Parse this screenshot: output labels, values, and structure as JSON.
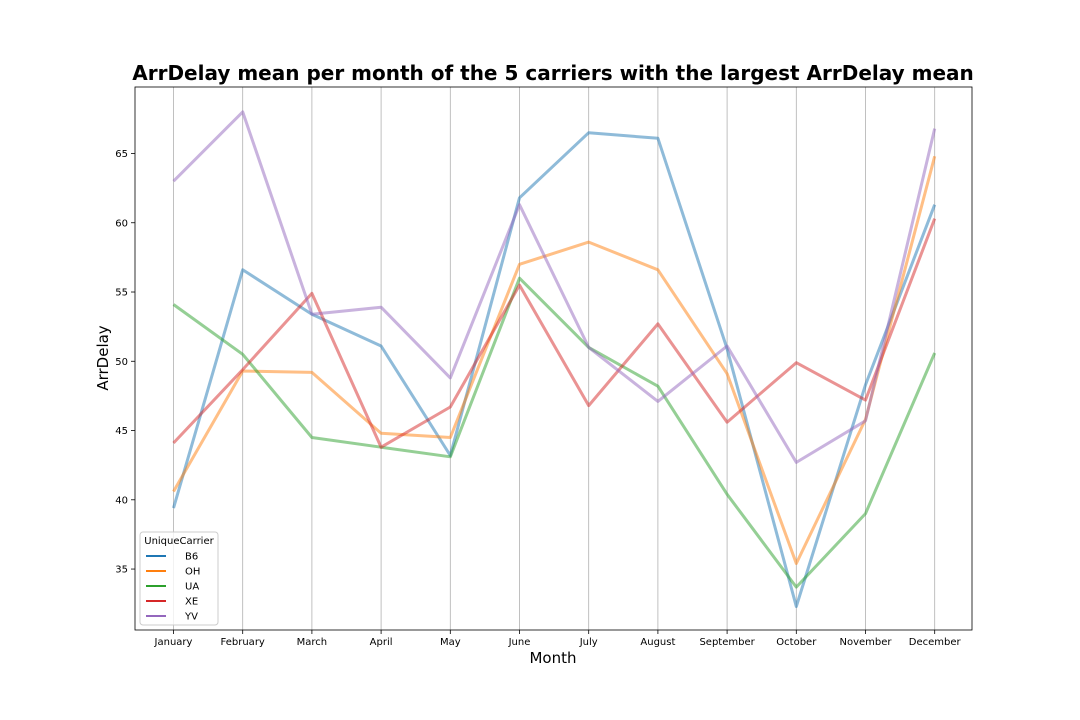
{
  "chart_data": {
    "type": "line",
    "title": "ArrDelay mean per month of the 5 carriers with the largest ArrDelay mean",
    "xlabel": "Month",
    "ylabel": "ArrDelay",
    "categories": [
      "January",
      "February",
      "March",
      "April",
      "May",
      "June",
      "July",
      "August",
      "September",
      "October",
      "November",
      "December"
    ],
    "yticks": [
      35,
      40,
      45,
      50,
      55,
      60,
      65
    ],
    "ylim": [
      30.6,
      69.8
    ],
    "grid": "vertical",
    "legend": {
      "title": "UniqueCarrier",
      "placement": "lower-left"
    },
    "series": [
      {
        "name": "B6",
        "color": "#1f77b4",
        "values": [
          39.4,
          56.6,
          53.4,
          51.1,
          43.2,
          61.8,
          66.5,
          66.1,
          50.9,
          32.3,
          48.3,
          61.3
        ]
      },
      {
        "name": "OH",
        "color": "#ff7f0e",
        "values": [
          40.6,
          49.3,
          49.2,
          44.8,
          44.5,
          57.0,
          58.6,
          56.6,
          49.1,
          35.4,
          45.8,
          64.8
        ]
      },
      {
        "name": "UA",
        "color": "#2ca02c",
        "values": [
          54.1,
          50.5,
          44.5,
          43.8,
          43.1,
          56.0,
          51.0,
          48.2,
          40.4,
          33.7,
          39.0,
          50.6
        ]
      },
      {
        "name": "XE",
        "color": "#d62728",
        "values": [
          44.1,
          49.4,
          54.9,
          43.8,
          46.7,
          55.5,
          46.8,
          52.7,
          45.6,
          49.9,
          47.2,
          60.3
        ]
      },
      {
        "name": "YV",
        "color": "#9467bd",
        "values": [
          63.0,
          68.0,
          53.4,
          53.9,
          48.8,
          61.3,
          51.0,
          47.1,
          51.1,
          42.7,
          45.7,
          66.8
        ]
      }
    ]
  }
}
